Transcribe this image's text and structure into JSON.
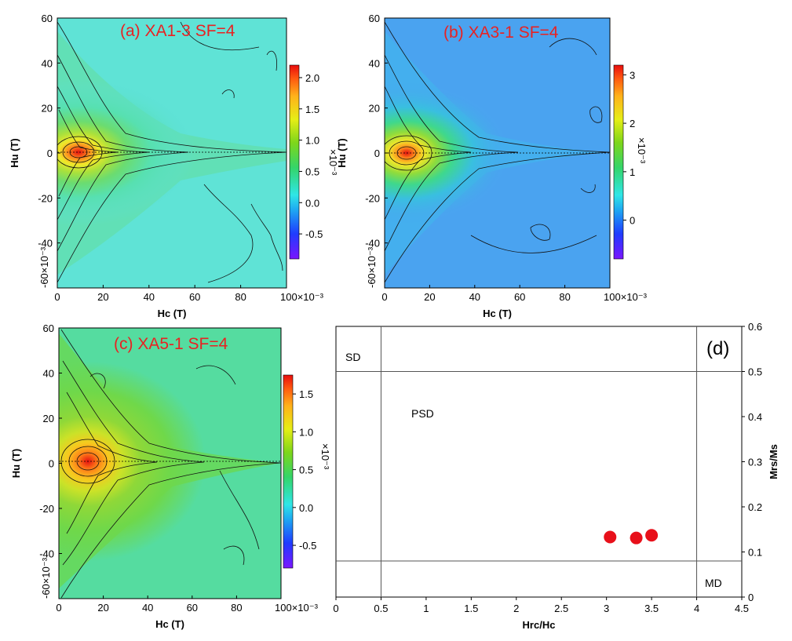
{
  "chart_data": [
    {
      "type": "heatmap",
      "subtype": "FORC diagram",
      "panel": "a",
      "title": "(a) XA1-3 SF=4",
      "xlabel": "Hc (T)",
      "ylabel": "Hu (T)",
      "xlim": [
        0,
        100
      ],
      "ylim": [
        -60,
        60
      ],
      "x_ticks": [
        "0",
        "20",
        "40",
        "60",
        "80",
        "100×10⁻³"
      ],
      "y_ticks": [
        "60",
        "40",
        "20",
        "0",
        "-20",
        "-40",
        "-60×10⁻³"
      ],
      "peak": {
        "hc": 10,
        "hu": 0
      },
      "colorbar": {
        "range": [
          -0.9,
          2.2
        ],
        "ticks": [
          "2.0",
          "1.5",
          "1.0",
          "0.5",
          "0.0",
          "-0.5"
        ],
        "ticks_values": [
          2.0,
          1.5,
          1.0,
          0.5,
          0.0,
          -0.5
        ],
        "multiplier_label": "×10⁻³"
      }
    },
    {
      "type": "heatmap",
      "subtype": "FORC diagram",
      "panel": "b",
      "title": "(b) XA3-1 SF=4",
      "xlabel": "Hc (T)",
      "ylabel": "Hu (T)",
      "xlim": [
        0,
        100
      ],
      "ylim": [
        -60,
        60
      ],
      "x_ticks": [
        "0",
        "20",
        "40",
        "60",
        "80",
        "100×10⁻³"
      ],
      "y_ticks": [
        "60",
        "40",
        "20",
        "0",
        "-20",
        "-40",
        "-60×10⁻³"
      ],
      "peak": {
        "hc": 10,
        "hu": 0
      },
      "colorbar": {
        "range": [
          -0.8,
          3.2
        ],
        "ticks": [
          "3",
          "2",
          "1",
          "0"
        ],
        "ticks_values": [
          3,
          2,
          1,
          0
        ],
        "multiplier_label": "×10⁻³"
      }
    },
    {
      "type": "heatmap",
      "subtype": "FORC diagram",
      "panel": "c",
      "title": "(c) XA5-1 SF=4",
      "xlabel": "Hc (T)",
      "ylabel": "Hu (T)",
      "xlim": [
        0,
        100
      ],
      "ylim": [
        -60,
        60
      ],
      "x_ticks": [
        "0",
        "20",
        "40",
        "60",
        "80",
        "100×10⁻³"
      ],
      "y_ticks": [
        "60",
        "40",
        "20",
        "0",
        "-20",
        "-40",
        "-60×10⁻³"
      ],
      "peak": {
        "hc": 14,
        "hu": 0
      },
      "colorbar": {
        "range": [
          -0.8,
          1.75
        ],
        "ticks": [
          "1.5",
          "1.0",
          "0.5",
          "0.0",
          "-0.5"
        ],
        "ticks_values": [
          1.5,
          1.0,
          0.5,
          0.0,
          -0.5
        ],
        "multiplier_label": "×10⁻³"
      }
    },
    {
      "type": "scatter",
      "subtype": "Day plot",
      "panel": "d",
      "title": "(d)",
      "xlabel": "Hrc/Hc",
      "ylabel": "Mrs/Ms",
      "xlim": [
        0,
        4.5
      ],
      "ylim": [
        0,
        0.6
      ],
      "x_ticks": [
        "0",
        "0.5",
        "1",
        "1.5",
        "2",
        "2.5",
        "3",
        "3.5",
        "4",
        "4.5"
      ],
      "y_ticks": [
        "0",
        "0.1",
        "0.2",
        "0.3",
        "0.4",
        "0.5",
        "0.6"
      ],
      "x_boundaries": [
        0.5,
        4.0
      ],
      "y_boundaries": [
        0.08,
        0.5
      ],
      "region_labels": [
        "SD",
        "PSD",
        "MD"
      ],
      "points": [
        {
          "x": 3.04,
          "y": 0.133
        },
        {
          "x": 3.33,
          "y": 0.131
        },
        {
          "x": 3.5,
          "y": 0.137
        }
      ],
      "point_color": "#e8101a"
    }
  ],
  "colors": {
    "title_red": "#e82222",
    "marker_red": "#e8101a"
  }
}
